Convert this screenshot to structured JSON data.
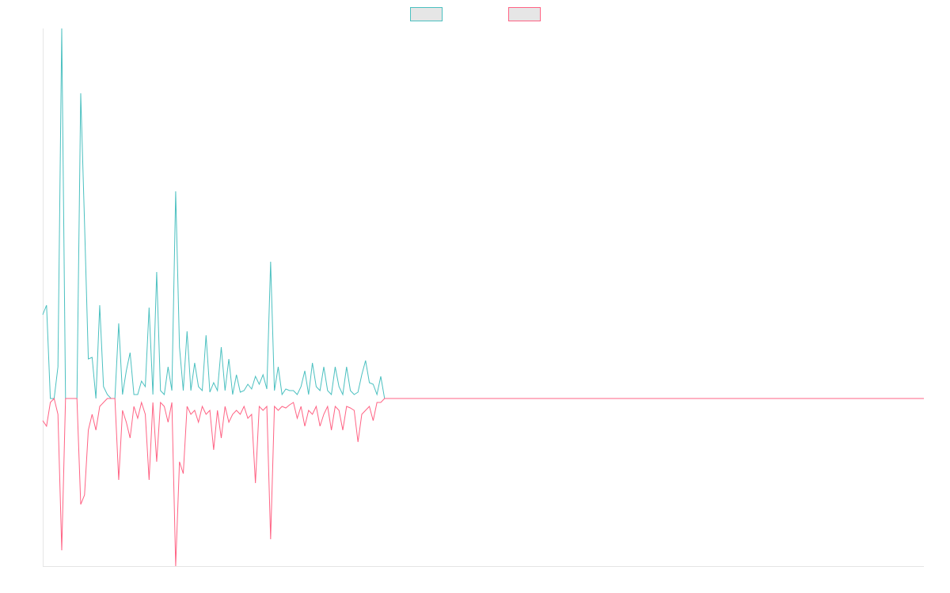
{
  "chart_data": {
    "type": "line",
    "x": [
      0,
      2,
      4,
      6,
      8,
      10,
      12,
      14,
      16,
      18,
      20,
      22,
      24,
      26,
      28,
      30,
      32,
      34,
      36,
      38,
      40,
      42,
      44,
      46,
      48,
      50,
      52,
      54,
      56,
      58,
      60,
      62,
      64,
      66,
      68,
      70,
      72,
      74,
      76,
      78,
      80,
      82,
      84,
      86,
      88,
      90,
      92,
      94,
      96,
      98,
      100,
      102,
      104,
      106,
      108,
      110,
      112,
      114,
      116,
      118,
      120,
      122,
      124,
      126,
      128,
      130,
      132,
      134,
      136,
      138,
      140,
      142,
      144,
      146,
      148,
      150,
      152,
      154,
      156,
      158,
      160,
      162,
      164,
      166,
      168,
      170,
      172,
      174,
      176,
      178,
      180,
      464
    ],
    "series": [
      {
        "color": "#4bc0c0",
        "values": [
          106,
          118,
          0,
          0,
          40,
          468,
          0,
          0,
          0,
          0,
          386,
          222,
          50,
          52,
          0,
          118,
          15,
          5,
          0,
          0,
          95,
          5,
          35,
          58,
          5,
          5,
          22,
          15,
          115,
          5,
          160,
          10,
          5,
          40,
          10,
          262,
          65,
          10,
          85,
          10,
          45,
          15,
          10,
          80,
          8,
          20,
          10,
          65,
          10,
          50,
          5,
          30,
          8,
          10,
          18,
          12,
          28,
          18,
          30,
          12,
          173,
          10,
          40,
          5,
          12,
          10,
          10,
          5,
          15,
          35,
          5,
          45,
          15,
          10,
          40,
          10,
          5,
          40,
          15,
          5,
          40,
          10,
          5,
          8,
          30,
          48,
          20,
          18,
          5,
          28,
          0,
          0
        ]
      },
      {
        "color": "#ff6384",
        "values": [
          -28,
          -35,
          -5,
          0,
          -20,
          -192,
          0,
          0,
          0,
          0,
          -134,
          -122,
          -40,
          -20,
          -40,
          -10,
          -5,
          0,
          0,
          0,
          -103,
          -15,
          -30,
          -50,
          -10,
          -25,
          -5,
          -20,
          -103,
          -5,
          -80,
          -5,
          -10,
          -30,
          -5,
          -212,
          -80,
          -95,
          -10,
          -20,
          -15,
          -30,
          -10,
          -20,
          -15,
          -65,
          -15,
          -50,
          -10,
          -30,
          -20,
          -15,
          -20,
          -10,
          -25,
          -20,
          -107,
          -10,
          -15,
          -10,
          -178,
          -10,
          -15,
          -10,
          -12,
          -8,
          -5,
          -25,
          -10,
          -35,
          -15,
          -20,
          -10,
          -35,
          -20,
          -10,
          -40,
          -10,
          -15,
          -40,
          -10,
          -12,
          -15,
          -55,
          -20,
          -15,
          -10,
          -28,
          -5,
          -5,
          0,
          0
        ]
      }
    ],
    "xlim": [
      0,
      464
    ],
    "ylim": [
      -212,
      468
    ]
  }
}
